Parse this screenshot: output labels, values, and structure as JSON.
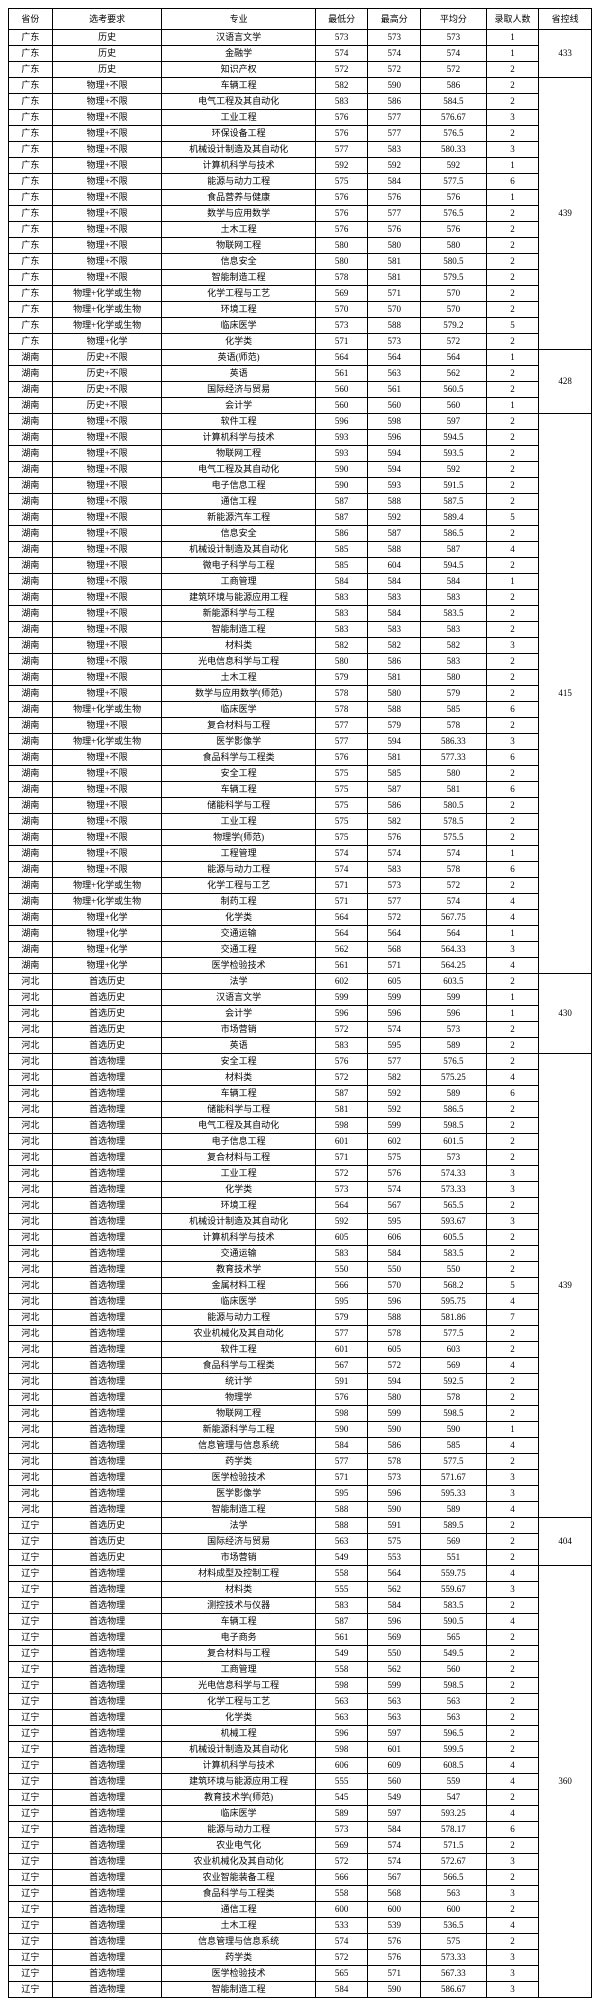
{
  "headers": [
    "省份",
    "选考要求",
    "专业",
    "最低分",
    "最高分",
    "平均分",
    "录取人数",
    "省控线"
  ],
  "groups": [
    {
      "line": "433",
      "rows": [
        [
          "广东",
          "历史",
          "汉语言文学",
          "573",
          "573",
          "573",
          "1"
        ],
        [
          "广东",
          "历史",
          "金融学",
          "574",
          "574",
          "574",
          "1"
        ],
        [
          "广东",
          "历史",
          "知识产权",
          "572",
          "572",
          "572",
          "2"
        ]
      ]
    },
    {
      "line": "439",
      "rows": [
        [
          "广东",
          "物理+不限",
          "车辆工程",
          "582",
          "590",
          "586",
          "2"
        ],
        [
          "广东",
          "物理+不限",
          "电气工程及其自动化",
          "583",
          "586",
          "584.5",
          "2"
        ],
        [
          "广东",
          "物理+不限",
          "工业工程",
          "576",
          "577",
          "576.67",
          "3"
        ],
        [
          "广东",
          "物理+不限",
          "环保设备工程",
          "576",
          "577",
          "576.5",
          "2"
        ],
        [
          "广东",
          "物理+不限",
          "机械设计制造及其自动化",
          "577",
          "583",
          "580.33",
          "3"
        ],
        [
          "广东",
          "物理+不限",
          "计算机科学与技术",
          "592",
          "592",
          "592",
          "1"
        ],
        [
          "广东",
          "物理+不限",
          "能源与动力工程",
          "575",
          "584",
          "577.5",
          "6"
        ],
        [
          "广东",
          "物理+不限",
          "食品营养与健康",
          "576",
          "576",
          "576",
          "1"
        ],
        [
          "广东",
          "物理+不限",
          "数学与应用数学",
          "576",
          "577",
          "576.5",
          "2"
        ],
        [
          "广东",
          "物理+不限",
          "土木工程",
          "576",
          "576",
          "576",
          "2"
        ],
        [
          "广东",
          "物理+不限",
          "物联网工程",
          "580",
          "580",
          "580",
          "2"
        ],
        [
          "广东",
          "物理+不限",
          "信息安全",
          "580",
          "581",
          "580.5",
          "2"
        ],
        [
          "广东",
          "物理+不限",
          "智能制造工程",
          "578",
          "581",
          "579.5",
          "2"
        ],
        [
          "广东",
          "物理+化学或生物",
          "化学工程与工艺",
          "569",
          "571",
          "570",
          "2"
        ],
        [
          "广东",
          "物理+化学或生物",
          "环境工程",
          "570",
          "570",
          "570",
          "2"
        ],
        [
          "广东",
          "物理+化学或生物",
          "临床医学",
          "573",
          "588",
          "579.2",
          "5"
        ],
        [
          "广东",
          "物理+化学",
          "化学类",
          "571",
          "573",
          "572",
          "2"
        ]
      ]
    },
    {
      "line": "428",
      "rows": [
        [
          "湖南",
          "历史+不限",
          "英语(师范)",
          "564",
          "564",
          "564",
          "1"
        ],
        [
          "湖南",
          "历史+不限",
          "英语",
          "561",
          "563",
          "562",
          "2"
        ],
        [
          "湖南",
          "历史+不限",
          "国际经济与贸易",
          "560",
          "561",
          "560.5",
          "2"
        ],
        [
          "湖南",
          "历史+不限",
          "会计学",
          "560",
          "560",
          "560",
          "1"
        ]
      ]
    },
    {
      "line": "415",
      "rows": [
        [
          "湖南",
          "物理+不限",
          "软件工程",
          "596",
          "598",
          "597",
          "2"
        ],
        [
          "湖南",
          "物理+不限",
          "计算机科学与技术",
          "593",
          "596",
          "594.5",
          "2"
        ],
        [
          "湖南",
          "物理+不限",
          "物联网工程",
          "593",
          "594",
          "593.5",
          "2"
        ],
        [
          "湖南",
          "物理+不限",
          "电气工程及其自动化",
          "590",
          "594",
          "592",
          "2"
        ],
        [
          "湖南",
          "物理+不限",
          "电子信息工程",
          "590",
          "593",
          "591.5",
          "2"
        ],
        [
          "湖南",
          "物理+不限",
          "通信工程",
          "587",
          "588",
          "587.5",
          "2"
        ],
        [
          "湖南",
          "物理+不限",
          "新能源汽车工程",
          "587",
          "592",
          "589.4",
          "5"
        ],
        [
          "湖南",
          "物理+不限",
          "信息安全",
          "586",
          "587",
          "586.5",
          "2"
        ],
        [
          "湖南",
          "物理+不限",
          "机械设计制造及其自动化",
          "585",
          "588",
          "587",
          "4"
        ],
        [
          "湖南",
          "物理+不限",
          "微电子科学与工程",
          "585",
          "604",
          "594.5",
          "2"
        ],
        [
          "湖南",
          "物理+不限",
          "工商管理",
          "584",
          "584",
          "584",
          "1"
        ],
        [
          "湖南",
          "物理+不限",
          "建筑环境与能源应用工程",
          "583",
          "583",
          "583",
          "2"
        ],
        [
          "湖南",
          "物理+不限",
          "新能源科学与工程",
          "583",
          "584",
          "583.5",
          "2"
        ],
        [
          "湖南",
          "物理+不限",
          "智能制造工程",
          "583",
          "583",
          "583",
          "2"
        ],
        [
          "湖南",
          "物理+不限",
          "材料类",
          "582",
          "582",
          "582",
          "3"
        ],
        [
          "湖南",
          "物理+不限",
          "光电信息科学与工程",
          "580",
          "586",
          "583",
          "2"
        ],
        [
          "湖南",
          "物理+不限",
          "土木工程",
          "579",
          "581",
          "580",
          "2"
        ],
        [
          "湖南",
          "物理+不限",
          "数学与应用数学(师范)",
          "578",
          "580",
          "579",
          "2"
        ],
        [
          "湖南",
          "物理+化学或生物",
          "临床医学",
          "578",
          "588",
          "585",
          "6"
        ],
        [
          "湖南",
          "物理+不限",
          "复合材料与工程",
          "577",
          "579",
          "578",
          "2"
        ],
        [
          "湖南",
          "物理+化学或生物",
          "医学影像学",
          "577",
          "594",
          "586.33",
          "3"
        ],
        [
          "湖南",
          "物理+不限",
          "食品科学与工程类",
          "576",
          "581",
          "577.33",
          "6"
        ],
        [
          "湖南",
          "物理+不限",
          "安全工程",
          "575",
          "585",
          "580",
          "2"
        ],
        [
          "湖南",
          "物理+不限",
          "车辆工程",
          "575",
          "587",
          "581",
          "6"
        ],
        [
          "湖南",
          "物理+不限",
          "储能科学与工程",
          "575",
          "586",
          "580.5",
          "2"
        ],
        [
          "湖南",
          "物理+不限",
          "工业工程",
          "575",
          "582",
          "578.5",
          "2"
        ],
        [
          "湖南",
          "物理+不限",
          "物理学(师范)",
          "575",
          "576",
          "575.5",
          "2"
        ],
        [
          "湖南",
          "物理+不限",
          "工程管理",
          "574",
          "574",
          "574",
          "1"
        ],
        [
          "湖南",
          "物理+不限",
          "能源与动力工程",
          "574",
          "583",
          "578",
          "6"
        ],
        [
          "湖南",
          "物理+化学或生物",
          "化学工程与工艺",
          "571",
          "573",
          "572",
          "2"
        ],
        [
          "湖南",
          "物理+化学或生物",
          "制药工程",
          "571",
          "577",
          "574",
          "4"
        ],
        [
          "湖南",
          "物理+化学",
          "化学类",
          "564",
          "572",
          "567.75",
          "4"
        ],
        [
          "湖南",
          "物理+化学",
          "交通运输",
          "564",
          "564",
          "564",
          "1"
        ],
        [
          "湖南",
          "物理+化学",
          "交通工程",
          "562",
          "568",
          "564.33",
          "3"
        ],
        [
          "湖南",
          "物理+化学",
          "医学检验技术",
          "561",
          "571",
          "564.25",
          "4"
        ]
      ]
    },
    {
      "line": "430",
      "rows": [
        [
          "河北",
          "首选历史",
          "法学",
          "602",
          "605",
          "603.5",
          "2"
        ],
        [
          "河北",
          "首选历史",
          "汉语言文学",
          "599",
          "599",
          "599",
          "1"
        ],
        [
          "河北",
          "首选历史",
          "会计学",
          "596",
          "596",
          "596",
          "1"
        ],
        [
          "河北",
          "首选历史",
          "市场营销",
          "572",
          "574",
          "573",
          "2"
        ],
        [
          "河北",
          "首选历史",
          "英语",
          "583",
          "595",
          "589",
          "2"
        ]
      ]
    },
    {
      "line": "439",
      "rows": [
        [
          "河北",
          "首选物理",
          "安全工程",
          "576",
          "577",
          "576.5",
          "2"
        ],
        [
          "河北",
          "首选物理",
          "材料类",
          "572",
          "582",
          "575.25",
          "4"
        ],
        [
          "河北",
          "首选物理",
          "车辆工程",
          "587",
          "592",
          "589",
          "6"
        ],
        [
          "河北",
          "首选物理",
          "储能科学与工程",
          "581",
          "592",
          "586.5",
          "2"
        ],
        [
          "河北",
          "首选物理",
          "电气工程及其自动化",
          "598",
          "599",
          "598.5",
          "2"
        ],
        [
          "河北",
          "首选物理",
          "电子信息工程",
          "601",
          "602",
          "601.5",
          "2"
        ],
        [
          "河北",
          "首选物理",
          "复合材料与工程",
          "571",
          "575",
          "573",
          "2"
        ],
        [
          "河北",
          "首选物理",
          "工业工程",
          "572",
          "576",
          "574.33",
          "3"
        ],
        [
          "河北",
          "首选物理",
          "化学类",
          "573",
          "574",
          "573.33",
          "3"
        ],
        [
          "河北",
          "首选物理",
          "环境工程",
          "564",
          "567",
          "565.5",
          "2"
        ],
        [
          "河北",
          "首选物理",
          "机械设计制造及其自动化",
          "592",
          "595",
          "593.67",
          "3"
        ],
        [
          "河北",
          "首选物理",
          "计算机科学与技术",
          "605",
          "606",
          "605.5",
          "2"
        ],
        [
          "河北",
          "首选物理",
          "交通运输",
          "583",
          "584",
          "583.5",
          "2"
        ],
        [
          "河北",
          "首选物理",
          "教育技术学",
          "550",
          "550",
          "550",
          "2"
        ],
        [
          "河北",
          "首选物理",
          "金属材料工程",
          "566",
          "570",
          "568.2",
          "5"
        ],
        [
          "河北",
          "首选物理",
          "临床医学",
          "595",
          "596",
          "595.75",
          "4"
        ],
        [
          "河北",
          "首选物理",
          "能源与动力工程",
          "579",
          "588",
          "581.86",
          "7"
        ],
        [
          "河北",
          "首选物理",
          "农业机械化及其自动化",
          "577",
          "578",
          "577.5",
          "2"
        ],
        [
          "河北",
          "首选物理",
          "软件工程",
          "601",
          "605",
          "603",
          "2"
        ],
        [
          "河北",
          "首选物理",
          "食品科学与工程类",
          "567",
          "572",
          "569",
          "4"
        ],
        [
          "河北",
          "首选物理",
          "统计学",
          "591",
          "594",
          "592.5",
          "2"
        ],
        [
          "河北",
          "首选物理",
          "物理学",
          "576",
          "580",
          "578",
          "2"
        ],
        [
          "河北",
          "首选物理",
          "物联网工程",
          "598",
          "599",
          "598.5",
          "2"
        ],
        [
          "河北",
          "首选物理",
          "新能源科学与工程",
          "590",
          "590",
          "590",
          "1"
        ],
        [
          "河北",
          "首选物理",
          "信息管理与信息系统",
          "584",
          "586",
          "585",
          "4"
        ],
        [
          "河北",
          "首选物理",
          "药学类",
          "577",
          "578",
          "577.5",
          "2"
        ],
        [
          "河北",
          "首选物理",
          "医学检验技术",
          "571",
          "573",
          "571.67",
          "3"
        ],
        [
          "河北",
          "首选物理",
          "医学影像学",
          "595",
          "596",
          "595.33",
          "3"
        ],
        [
          "河北",
          "首选物理",
          "智能制造工程",
          "588",
          "590",
          "589",
          "4"
        ]
      ]
    },
    {
      "line": "404",
      "rows": [
        [
          "辽宁",
          "首选历史",
          "法学",
          "588",
          "591",
          "589.5",
          "2"
        ],
        [
          "辽宁",
          "首选历史",
          "国际经济与贸易",
          "563",
          "575",
          "569",
          "2"
        ],
        [
          "辽宁",
          "首选历史",
          "市场营销",
          "549",
          "553",
          "551",
          "2"
        ]
      ]
    },
    {
      "line": "360",
      "rows": [
        [
          "辽宁",
          "首选物理",
          "材料成型及控制工程",
          "558",
          "564",
          "559.75",
          "4"
        ],
        [
          "辽宁",
          "首选物理",
          "材料类",
          "555",
          "562",
          "559.67",
          "3"
        ],
        [
          "辽宁",
          "首选物理",
          "测控技术与仪器",
          "583",
          "584",
          "583.5",
          "2"
        ],
        [
          "辽宁",
          "首选物理",
          "车辆工程",
          "587",
          "596",
          "590.5",
          "4"
        ],
        [
          "辽宁",
          "首选物理",
          "电子商务",
          "561",
          "569",
          "565",
          "2"
        ],
        [
          "辽宁",
          "首选物理",
          "复合材料与工程",
          "549",
          "550",
          "549.5",
          "2"
        ],
        [
          "辽宁",
          "首选物理",
          "工商管理",
          "558",
          "562",
          "560",
          "2"
        ],
        [
          "辽宁",
          "首选物理",
          "光电信息科学与工程",
          "598",
          "599",
          "598.5",
          "2"
        ],
        [
          "辽宁",
          "首选物理",
          "化学工程与工艺",
          "563",
          "563",
          "563",
          "2"
        ],
        [
          "辽宁",
          "首选物理",
          "化学类",
          "563",
          "563",
          "563",
          "2"
        ],
        [
          "辽宁",
          "首选物理",
          "机械工程",
          "596",
          "597",
          "596.5",
          "2"
        ],
        [
          "辽宁",
          "首选物理",
          "机械设计制造及其自动化",
          "598",
          "601",
          "599.5",
          "2"
        ],
        [
          "辽宁",
          "首选物理",
          "计算机科学与技术",
          "606",
          "609",
          "608.5",
          "4"
        ],
        [
          "辽宁",
          "首选物理",
          "建筑环境与能源应用工程",
          "555",
          "560",
          "559",
          "4"
        ],
        [
          "辽宁",
          "首选物理",
          "教育技术学(师范)",
          "545",
          "549",
          "547",
          "2"
        ],
        [
          "辽宁",
          "首选物理",
          "临床医学",
          "589",
          "597",
          "593.25",
          "4"
        ],
        [
          "辽宁",
          "首选物理",
          "能源与动力工程",
          "573",
          "584",
          "578.17",
          "6"
        ],
        [
          "辽宁",
          "首选物理",
          "农业电气化",
          "569",
          "574",
          "571.5",
          "2"
        ],
        [
          "辽宁",
          "首选物理",
          "农业机械化及其自动化",
          "572",
          "574",
          "572.67",
          "3"
        ],
        [
          "辽宁",
          "首选物理",
          "农业智能装备工程",
          "566",
          "567",
          "566.5",
          "2"
        ],
        [
          "辽宁",
          "首选物理",
          "食品科学与工程类",
          "558",
          "568",
          "563",
          "3"
        ],
        [
          "辽宁",
          "首选物理",
          "通信工程",
          "600",
          "600",
          "600",
          "2"
        ],
        [
          "辽宁",
          "首选物理",
          "土木工程",
          "533",
          "539",
          "536.5",
          "4"
        ],
        [
          "辽宁",
          "首选物理",
          "信息管理与信息系统",
          "574",
          "576",
          "575",
          "2"
        ],
        [
          "辽宁",
          "首选物理",
          "药学类",
          "572",
          "576",
          "573.33",
          "3"
        ],
        [
          "辽宁",
          "首选物理",
          "医学检验技术",
          "565",
          "571",
          "567.33",
          "3"
        ],
        [
          "辽宁",
          "首选物理",
          "智能制造工程",
          "584",
          "590",
          "586.67",
          "3"
        ]
      ]
    }
  ]
}
